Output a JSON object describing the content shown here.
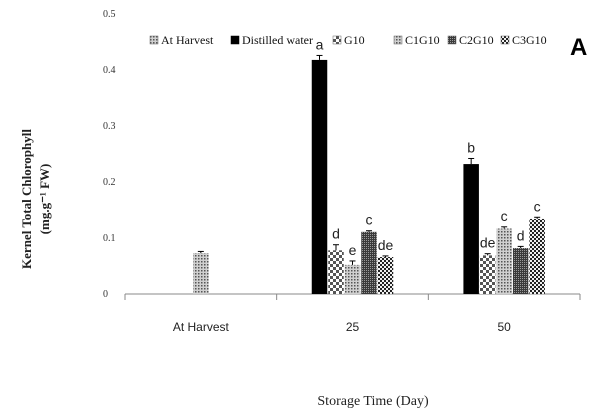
{
  "chart_data": {
    "type": "bar",
    "panel_label": "A",
    "title": "",
    "xlabel": "Storage Time (Day)",
    "ylabel_line1": "Kernel Total Chlorophyll",
    "ylabel_line2": "(mg.g⁻¹ FW)",
    "ylim": [
      0,
      0.5
    ],
    "yticks": [
      "0",
      "0.1",
      "0.2",
      "0.3",
      "0.4",
      "0.5"
    ],
    "categories": [
      "At Harvest",
      "25",
      "50"
    ],
    "grid": false,
    "legend_position": "top",
    "series": [
      {
        "name": "At Harvest",
        "pattern": "dots",
        "color": "#888888",
        "values": [
          0.073,
          null,
          null
        ],
        "errors": [
          0.003,
          null,
          null
        ],
        "labels": [
          "",
          "",
          ""
        ]
      },
      {
        "name": "Distilled water",
        "pattern": "solid",
        "color": "#000000",
        "values": [
          null,
          0.418,
          0.232
        ],
        "errors": [
          null,
          0.008,
          0.01
        ],
        "labels": [
          "",
          "a",
          "b"
        ]
      },
      {
        "name": "G10",
        "pattern": "checker",
        "color": "#444444",
        "values": [
          null,
          0.078,
          0.069
        ],
        "errors": [
          null,
          0.01,
          0.003
        ],
        "labels": [
          "",
          "d",
          "de"
        ]
      },
      {
        "name": "C1G10",
        "pattern": "dots",
        "color": "#6a6a6a",
        "values": [
          null,
          0.052,
          0.117
        ],
        "errors": [
          null,
          0.007,
          0.003
        ],
        "labels": [
          "",
          "e",
          "c"
        ]
      },
      {
        "name": "C2G10",
        "pattern": "dense",
        "color": "#555555",
        "values": [
          null,
          0.111,
          0.082
        ],
        "errors": [
          null,
          0.002,
          0.003
        ],
        "labels": [
          "",
          "c",
          "d"
        ]
      },
      {
        "name": "C3G10",
        "pattern": "crosshatch",
        "color": "#333333",
        "values": [
          null,
          0.066,
          0.134
        ],
        "errors": [
          null,
          0.002,
          0.003
        ],
        "labels": [
          "",
          "de",
          "c"
        ]
      }
    ]
  }
}
